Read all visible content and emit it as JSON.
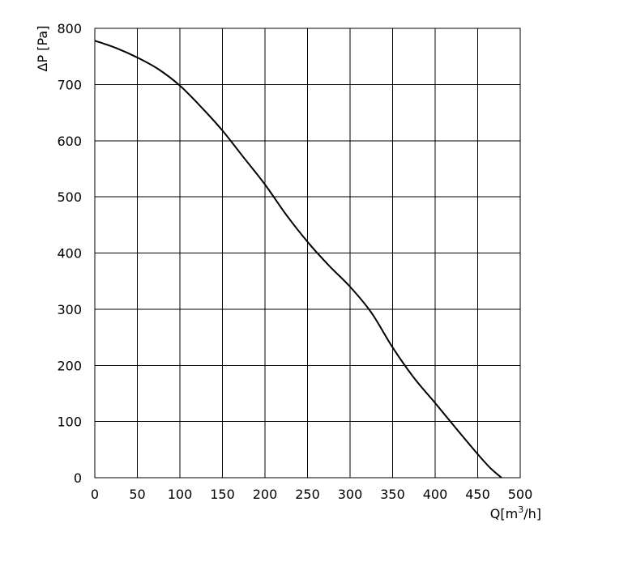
{
  "chart_data": {
    "type": "line",
    "title": "",
    "xlabel": "Q[m³/h]",
    "xlabel_main": "Q[m",
    "xlabel_sup": "3",
    "xlabel_tail": "/h]",
    "ylabel": "ΔP [Pa]",
    "xlim": [
      0,
      500
    ],
    "ylim": [
      0,
      800
    ],
    "x_ticks": [
      0,
      50,
      100,
      150,
      200,
      250,
      300,
      350,
      400,
      450,
      500
    ],
    "y_ticks": [
      0,
      100,
      200,
      300,
      400,
      500,
      600,
      700,
      800
    ],
    "grid": true,
    "series": [
      {
        "x": [
          0,
          25,
          50,
          75,
          100,
          125,
          150,
          175,
          200,
          225,
          250,
          275,
          300,
          325,
          350,
          375,
          400,
          425,
          450,
          465,
          478
        ],
        "y": [
          778,
          765,
          748,
          727,
          698,
          660,
          618,
          570,
          522,
          468,
          420,
          378,
          340,
          294,
          232,
          178,
          133,
          87,
          42,
          17,
          0
        ]
      }
    ]
  }
}
